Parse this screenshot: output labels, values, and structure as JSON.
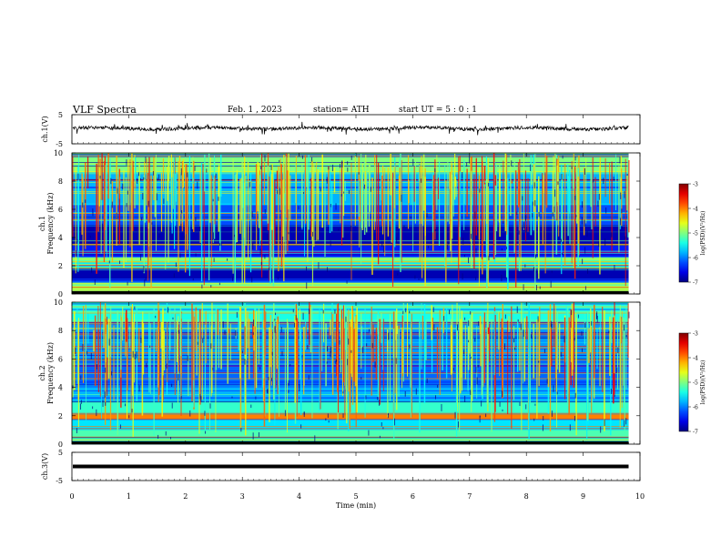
{
  "header": {
    "title": "VLF  Spectra",
    "date": "Feb. 1  , 2023",
    "station": "station= ATH",
    "start": "start  UT  =    5  : 0   : 1"
  },
  "chart_data": [
    {
      "type": "line",
      "panel": "ch1-waveform",
      "ylabel": "ch.1(V)",
      "ylim": [
        -5,
        5
      ],
      "yticks": [
        "5",
        "-5"
      ],
      "xlim": [
        0,
        10
      ],
      "x_end": 9.8,
      "trace_center": 0.3,
      "color": "#000000"
    },
    {
      "type": "heatmap",
      "panel": "ch1-spectrogram",
      "ylabel_line1": "ch.1",
      "ylabel_line2": "Frequency  (kHz)",
      "ylim": [
        0,
        10
      ],
      "yticks": [
        "0",
        "2",
        "4",
        "6",
        "8",
        "10"
      ],
      "xlim": [
        0,
        10
      ],
      "x_end": 9.8,
      "bands": [
        {
          "f0": 0,
          "f1": 0.2,
          "level": -7
        },
        {
          "f0": 0.2,
          "f1": 0.8,
          "level": -4.8
        },
        {
          "f0": 0.8,
          "f1": 1.1,
          "level": -6.3
        },
        {
          "f0": 1.1,
          "f1": 1.9,
          "level": -6.8
        },
        {
          "f0": 1.9,
          "f1": 2.2,
          "level": -5.5
        },
        {
          "f0": 2.2,
          "f1": 2.6,
          "level": -4.9
        },
        {
          "f0": 2.6,
          "f1": 3.4,
          "level": -6.4
        },
        {
          "f0": 3.4,
          "f1": 4.9,
          "level": -6.8
        },
        {
          "f0": 4.9,
          "f1": 6.3,
          "level": -6.2
        },
        {
          "f0": 6.3,
          "f1": 8.5,
          "level": -5.8
        },
        {
          "f0": 8.5,
          "f1": 10,
          "level": -5.0
        }
      ],
      "colorbar": {
        "label": "log(PSD)(V²/Hz)",
        "ticks": [
          "-3",
          "-4",
          "-5",
          "-6",
          "-7"
        ],
        "range": [
          -7,
          -3
        ]
      }
    },
    {
      "type": "heatmap",
      "panel": "ch2-spectrogram",
      "ylabel_line1": "ch.2",
      "ylabel_line2": "Frequency  (kHz)",
      "ylim": [
        0,
        10
      ],
      "yticks": [
        "0",
        "2",
        "4",
        "6",
        "8",
        "10"
      ],
      "xlim": [
        0,
        10
      ],
      "x_end": 9.8,
      "bands": [
        {
          "f0": 0,
          "f1": 0.2,
          "level": -7
        },
        {
          "f0": 0.2,
          "f1": 1.0,
          "level": -5.2
        },
        {
          "f0": 1.0,
          "f1": 1.7,
          "level": -5.6
        },
        {
          "f0": 1.7,
          "f1": 2.2,
          "level": -4.0
        },
        {
          "f0": 2.2,
          "f1": 3.0,
          "level": -5.3
        },
        {
          "f0": 3.0,
          "f1": 4.0,
          "level": -5.8
        },
        {
          "f0": 4.0,
          "f1": 6.0,
          "level": -6.1
        },
        {
          "f0": 6.0,
          "f1": 8.5,
          "level": -5.9
        },
        {
          "f0": 8.5,
          "f1": 10,
          "level": -5.4
        }
      ],
      "colorbar": {
        "label": "log(PSD)(V²/Hz)",
        "ticks": [
          "-3",
          "-4",
          "-5",
          "-6",
          "-7"
        ],
        "range": [
          -7,
          -3
        ]
      }
    },
    {
      "type": "line",
      "panel": "ch3-waveform",
      "ylabel": "ch.3(V)",
      "ylim": [
        -5,
        5
      ],
      "yticks": [
        "5",
        "-5"
      ],
      "xlim": [
        0,
        10
      ],
      "x_end": 9.8,
      "trace_center": 0,
      "color": "#000000"
    }
  ],
  "xaxis": {
    "label": "Time  (min)",
    "ticks": [
      "0",
      "1",
      "2",
      "3",
      "4",
      "5",
      "6",
      "7",
      "8",
      "9",
      "10"
    ]
  }
}
